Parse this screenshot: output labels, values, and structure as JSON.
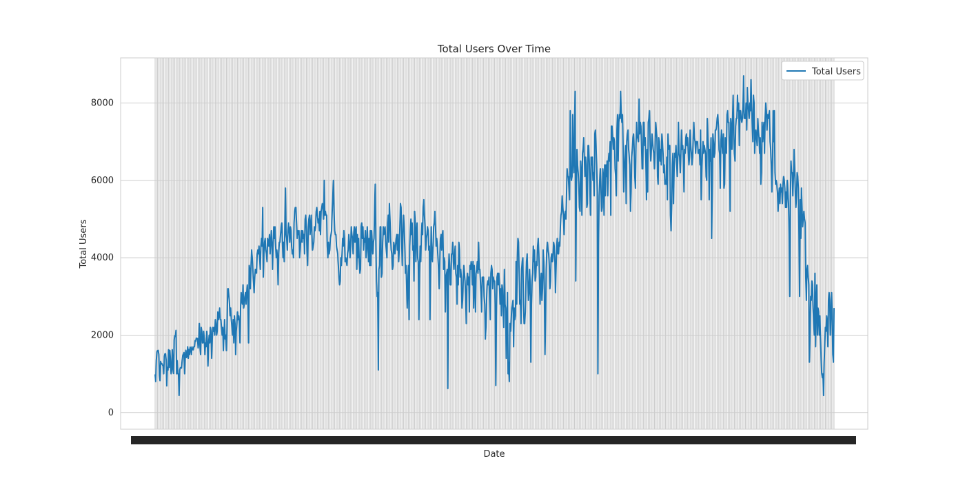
{
  "chart_data": {
    "type": "line",
    "title": "Total Users Over Time",
    "xlabel": "Date",
    "ylabel": "Total Users",
    "ylim": [
      -431,
      9166
    ],
    "yticks": [
      0,
      2000,
      4000,
      6000,
      8000
    ],
    "grid": true,
    "legend": {
      "position": "top-right",
      "entries": [
        "Total Users"
      ]
    },
    "colors": {
      "series": "#1f77b4",
      "grid": "#cccccc",
      "background": "#ffffff",
      "text": "#262626"
    },
    "series": [
      {
        "name": "Total Users",
        "values": [
          985,
          801,
          1349,
          1562,
          1600,
          1606,
          1510,
          959,
          822,
          1321,
          1263,
          1263,
          1229,
          1204,
          1000,
          1454,
          1518,
          1518,
          1362,
          690,
          1167,
          1098,
          1623,
          1167,
          1605,
          1360,
          1000,
          1096,
          1623,
          1162,
          1006,
          1872,
          1986,
          1976,
          2125,
          1000,
          1340,
          1000,
          1000,
          441,
          1100,
          1155,
          1167,
          1151,
          1342,
          1473,
          1509,
          1550,
          1000,
          1467,
          1609,
          1420,
          1470,
          1700,
          1400,
          1632,
          1500,
          1690,
          1658,
          1500,
          1700,
          1625,
          1620,
          1700,
          1700,
          1860,
          1842,
          1924,
          1900,
          1914,
          1670,
          1802,
          2300,
          1700,
          1500,
          2200,
          2100,
          1800,
          1800,
          2100,
          1900,
          1500,
          1800,
          1700,
          2100,
          1800,
          1200,
          1800,
          2000,
          1800,
          2200,
          2100,
          1400,
          1900,
          2200,
          2100,
          2200,
          2000,
          2400,
          2300,
          2000,
          2100,
          2600,
          2400,
          2500,
          2700,
          2400,
          2400,
          2200,
          2000,
          2200,
          1600,
          2000,
          2400,
          1900,
          2000,
          1600,
          2200,
          3200,
          3200,
          3000,
          2800,
          2500,
          2700,
          2400,
          2200,
          2000,
          2400,
          1800,
          2500,
          2300,
          1500,
          2100,
          2300,
          2600,
          2400,
          2500,
          2300,
          1800,
          2700,
          3100,
          2900,
          2800,
          3300,
          2700,
          2800,
          3000,
          3100,
          2800,
          3100,
          3300,
          2900,
          1800,
          3800,
          3700,
          3200,
          3800,
          4200,
          4000,
          3700,
          3400,
          3100,
          3500,
          3700,
          3700,
          3600,
          4100,
          4200,
          4100,
          4300,
          4000,
          3700,
          4300,
          4500,
          4300,
          5300,
          3500,
          4100,
          4400,
          4500,
          4200,
          4100,
          3900,
          4500,
          4400,
          4300,
          4600,
          4100,
          4400,
          4700,
          4300,
          3700,
          4400,
          4800,
          4500,
          4800,
          4300,
          4000,
          4200,
          4000,
          3300,
          4100,
          4400,
          4400,
          4600,
          4800,
          4900,
          4400,
          4000,
          4400,
          3900,
          4800,
          5800,
          4600,
          4500,
          4200,
          4700,
          4900,
          4700,
          4400,
          4800,
          4700,
          4300,
          4100,
          4200,
          4000,
          4900,
          5200,
          5300,
          5300,
          4900,
          4500,
          4700,
          4600,
          4700,
          4000,
          4200,
          4500,
          4700,
          4400,
          4700,
          4500,
          4600,
          4100,
          5000,
          5100,
          4800,
          4200,
          3800,
          4700,
          5000,
          5100,
          4600,
          4800,
          5100,
          4600,
          4200,
          4300,
          4400,
          4800,
          4700,
          4800,
          5200,
          5300,
          5100,
          4900,
          5000,
          4700,
          5200,
          4600,
          5200,
          5300,
          5400,
          5300,
          5000,
          6000,
          5100,
          5200,
          5100,
          5100,
          4300,
          4000,
          4400,
          4100,
          4200,
          4500,
          4600,
          4700,
          5200,
          5600,
          6000,
          5200,
          4700,
          4600,
          4600,
          4300,
          4200,
          4100,
          3800,
          3500,
          3300,
          3400,
          4000,
          3800,
          4100,
          4500,
          4300,
          4700,
          4500,
          3900,
          4000,
          3900,
          3800,
          4100,
          4200,
          4600,
          4400,
          4000,
          4300,
          4800,
          4600,
          4500,
          4100,
          4600,
          4800,
          4400,
          4700,
          4800,
          3700,
          4600,
          4000,
          4500,
          3900,
          3600,
          3700,
          4800,
          4900,
          4500,
          4800,
          4200,
          4500,
          4400,
          4700,
          4000,
          4200,
          4800,
          4400,
          3900,
          4500,
          3800,
          4700,
          3800,
          4700,
          4400,
          4100,
          4400,
          4500,
          5300,
          5900,
          4500,
          3400,
          3000,
          3100,
          1100,
          3700,
          3800,
          4800,
          4800,
          3500,
          3600,
          4400,
          4800,
          4600,
          4700,
          4800,
          4400,
          4200,
          4000,
          4900,
          5100,
          4400,
          5400,
          5000,
          4500,
          4200,
          4100,
          3700,
          3800,
          4400,
          4300,
          4100,
          4300,
          4500,
          4600,
          4200,
          4600,
          3900,
          4200,
          4800,
          5400,
          5300,
          4400,
          3800,
          4700,
          5100,
          4800,
          4300,
          3600,
          3800,
          3300,
          2700,
          3400,
          3800,
          2400,
          4300,
          4700,
          5000,
          4600,
          4900,
          4200,
          4300,
          3400,
          5200,
          4900,
          3900,
          4700,
          4900,
          4000,
          3900,
          2400,
          3600,
          4300,
          3900,
          4600,
          4900,
          4600,
          5300,
          5500,
          5100,
          4800,
          4200,
          4500,
          4600,
          4800,
          4700,
          4200,
          4300,
          2400,
          3800,
          4800,
          4000,
          3900,
          4300,
          4800,
          4900,
          5200,
          4800,
          4300,
          4500,
          4300,
          4000,
          3700,
          3200,
          3900,
          4500,
          4600,
          4200,
          4600,
          4700,
          3700,
          4000,
          3900,
          2600,
          3500,
          3600,
          3700,
          620,
          3600,
          4100,
          3800,
          3300,
          3300,
          4100,
          4100,
          4400,
          3900,
          3700,
          4100,
          4300,
          3600,
          3500,
          2800,
          3800,
          3300,
          4400,
          4200,
          3500,
          3700,
          3500,
          2700,
          2900,
          3400,
          3800,
          3600,
          3400,
          3000,
          2300,
          3400,
          3600,
          3300,
          3500,
          2600,
          3800,
          3700,
          3900,
          3800,
          3300,
          3900,
          2700,
          3800,
          3300,
          2600,
          3600,
          3700,
          3900,
          3600,
          4400,
          3700,
          3700,
          3400,
          3100,
          2600,
          3500,
          3400,
          3500,
          3000,
          2800,
          1900,
          2200,
          2900,
          3300,
          3400,
          3300,
          3500,
          2900,
          2400,
          3600,
          3800,
          3700,
          3200,
          3500,
          3400,
          3400,
          2800,
          700,
          2500,
          3500,
          3600,
          3300,
          3600,
          3300,
          2800,
          3200,
          2500,
          3300,
          3200,
          2600,
          2200,
          3700,
          2800,
          2700,
          1400,
          2400,
          3100,
          1000,
          1300,
          800,
          2300,
          2100,
          2400,
          2700,
          2800,
          2900,
          1700,
          2700,
          2400,
          2500,
          3900,
          2800,
          4000,
          4500,
          4400,
          3600,
          2800,
          2900,
          2300,
          3700,
          3900,
          4000,
          2800,
          2300,
          2300,
          2600,
          3300,
          3900,
          4100,
          3500,
          2900,
          3100,
          3700,
          3300,
          1300,
          2800,
          3400,
          3600,
          4300,
          3900,
          4200,
          3400,
          3500,
          3900,
          3800,
          4300,
          4500,
          4100,
          3500,
          2800,
          3300,
          3600,
          2900,
          3200,
          4200,
          3900,
          3100,
          1500,
          2400,
          3700,
          4200,
          4400,
          4200,
          4100,
          3800,
          3200,
          3400,
          4000,
          4100,
          3900,
          4000,
          4400,
          4300,
          4000,
          3100,
          3700,
          4300,
          4500,
          4100,
          4100,
          4400,
          4300,
          4800,
          5100,
          5200,
          5600,
          5300,
          5100,
          4600,
          5100,
          5200,
          5000,
          5600,
          6300,
          6100,
          6100,
          5800,
          5500,
          7800,
          6200,
          6000,
          6100,
          7700,
          6500,
          6200,
          7400,
          8300,
          3400,
          5600,
          6800,
          6400,
          6200,
          5900,
          5300,
          5200,
          6500,
          6200,
          5100,
          6700,
          6800,
          7100,
          6600,
          6100,
          6600,
          6400,
          5300,
          5400,
          6900,
          6900,
          6500,
          5800,
          5100,
          6600,
          6400,
          6600,
          6000,
          6200,
          5600,
          7200,
          7300,
          6900,
          6400,
          5700,
          1000,
          4300,
          5600,
          6000,
          6300,
          5800,
          5200,
          5300,
          6300,
          6100,
          5100,
          6400,
          5600,
          6400,
          6100,
          6500,
          5600,
          6500,
          6700,
          6500,
          7000,
          5100,
          7400,
          7400,
          7100,
          6800,
          7100,
          7000,
          6300,
          6100,
          5600,
          7300,
          7700,
          6500,
          7500,
          7700,
          7600,
          8300,
          7700,
          7500,
          7700,
          6900,
          5700,
          6300,
          6600,
          6900,
          5400,
          7000,
          7200,
          7300,
          6800,
          6600,
          6400,
          5200,
          5700,
          6600,
          6800,
          7100,
          7200,
          6800,
          6100,
          5800,
          6900,
          7500,
          7100,
          7100,
          7000,
          8100,
          7200,
          7500,
          7400,
          6900,
          6300,
          6300,
          7500,
          7500,
          6900,
          7100,
          6500,
          5500,
          6800,
          5700,
          7500,
          7600,
          7800,
          6900,
          6500,
          6800,
          7200,
          7000,
          6800,
          6700,
          6300,
          6800,
          7500,
          7300,
          7100,
          6100,
          5900,
          7100,
          7000,
          6500,
          6800,
          6400,
          7200,
          7000,
          6700,
          6200,
          6400,
          5900,
          6000,
          5900,
          6600,
          5500,
          7200,
          6800,
          6900,
          6900,
          5100,
          4700,
          5400,
          6400,
          6700,
          5400,
          6300,
          6700,
          6600,
          6900,
          6500,
          6100,
          6600,
          7500,
          6700,
          6600,
          6200,
          6700,
          7300,
          6800,
          6900,
          6500,
          5700,
          6800,
          6700,
          7100,
          7200,
          6900,
          7100,
          6700,
          6400,
          6600,
          7300,
          6900,
          6700,
          6400,
          6600,
          7100,
          7500,
          7100,
          7000,
          6700,
          7000,
          7000,
          7000,
          6700,
          6700,
          6800,
          6400,
          7300,
          5500,
          6200,
          6700,
          7000,
          6700,
          6900,
          6800,
          6700,
          6100,
          6000,
          7600,
          7100,
          6800,
          5500,
          6800,
          6500,
          7100,
          4500,
          5700,
          7200,
          7000,
          6600,
          6700,
          7300,
          7300,
          7400,
          7600,
          7700,
          7400,
          6800,
          6700,
          5800,
          7000,
          7300,
          6900,
          6700,
          7200,
          5800,
          5900,
          7100,
          6800,
          6700,
          7700,
          7800,
          7500,
          7500,
          6800,
          5200,
          7600,
          7400,
          6800,
          7600,
          8200,
          7200,
          6700,
          6500,
          7400,
          7600,
          7600,
          8200,
          7800,
          8000,
          6900,
          7800,
          7800,
          7600,
          7500,
          7600,
          7900,
          8700,
          7600,
          7700,
          7600,
          8000,
          7300,
          8400,
          8000,
          7800,
          7600,
          8000,
          7800,
          8600,
          7900,
          7400,
          7000,
          8200,
          8000,
          6700,
          7100,
          7300,
          7100,
          6900,
          7600,
          7300,
          7100,
          6700,
          7100,
          5900,
          6200,
          7500,
          7000,
          7300,
          7500,
          6700,
          7600,
          8000,
          7800,
          7300,
          7700,
          7600,
          7700,
          7800,
          7000,
          6800,
          6400,
          5700,
          6400,
          7800,
          7000,
          7800,
          6200,
          5900,
          6000,
          5900,
          5700,
          5200,
          5600,
          5800,
          5400,
          5900,
          5700,
          5800,
          5400,
          5900,
          6100,
          6000,
          5800,
          5300,
          5700,
          5300,
          6000,
          5700,
          5400,
          4600,
          3000,
          5600,
          6500,
          6200,
          6200,
          5600,
          6100,
          6800,
          6300,
          5700,
          5300,
          5600,
          6200,
          6100,
          5800,
          4600,
          3000,
          5500,
          4500,
          5800,
          5300,
          4800,
          5000,
          5200,
          5000,
          4900,
          3500,
          2900,
          3700,
          3800,
          3500,
          3300,
          1300,
          2000,
          3000,
          2900,
          3400,
          3300,
          2700,
          2300,
          2000,
          3600,
          1700,
          2900,
          3300,
          2000,
          2700,
          2600,
          2000,
          2500,
          1900,
          1400,
          1000,
          900,
          1000,
          440,
          1300,
          1800,
          2200,
          2100,
          2500,
          2300,
          1700,
          2900,
          3100,
          2900,
          2000,
          2500,
          3100,
          2500,
          1500,
          1300,
          2700
        ]
      }
    ]
  }
}
